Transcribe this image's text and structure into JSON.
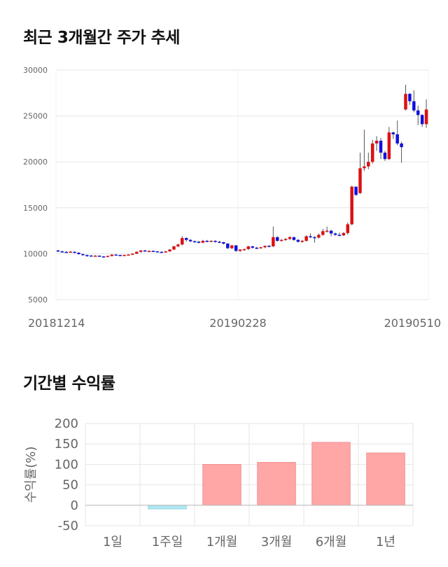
{
  "sections": {
    "price_title": "최근 3개월간 주가 추세",
    "return_title": "기간별 수익률"
  },
  "colors": {
    "up": "#dd1111",
    "down": "#1111dd",
    "grid": "#e6e6e6",
    "positive_bar": "#ffa6a6",
    "negative_bar": "#aee8f2"
  },
  "chart_data": [
    {
      "type": "candlestick",
      "title": "최근 3개월간 주가 추세",
      "xlabel": "",
      "ylabel": "",
      "ylim": [
        5000,
        30000
      ],
      "y_ticks": [
        "30000",
        "25000",
        "20000",
        "15000",
        "10000",
        "5000"
      ],
      "x_tick_labels": [
        "20181214",
        "20190228",
        "20190510"
      ],
      "candles": [
        [
          10350,
          10250,
          10420,
          10180
        ],
        [
          10250,
          10200,
          10330,
          10120
        ],
        [
          10200,
          10150,
          10270,
          10080
        ],
        [
          10150,
          10220,
          10300,
          10100
        ],
        [
          10200,
          10100,
          10250,
          10050
        ],
        [
          10100,
          9950,
          10180,
          9900
        ],
        [
          9950,
          9850,
          10020,
          9800
        ],
        [
          9850,
          9800,
          9900,
          9650
        ],
        [
          9800,
          9750,
          9850,
          9700
        ],
        [
          9750,
          9780,
          9850,
          9700
        ],
        [
          9780,
          9700,
          9820,
          9650
        ],
        [
          9700,
          9680,
          9750,
          9600
        ],
        [
          9680,
          9750,
          9800,
          9620
        ],
        [
          9750,
          9900,
          9950,
          9700
        ],
        [
          9900,
          9850,
          9950,
          9800
        ],
        [
          9850,
          9800,
          9900,
          9750
        ],
        [
          9800,
          9850,
          9900,
          9760
        ],
        [
          9850,
          9900,
          9950,
          9800
        ],
        [
          9900,
          10000,
          10050,
          9850
        ],
        [
          10000,
          10200,
          10250,
          9950
        ],
        [
          10200,
          10350,
          10400,
          10100
        ],
        [
          10350,
          10250,
          10400,
          10200
        ],
        [
          10250,
          10300,
          10350,
          10150
        ],
        [
          10300,
          10250,
          10350,
          10200
        ],
        [
          10250,
          10200,
          10300,
          10150
        ],
        [
          10200,
          10150,
          10250,
          10100
        ],
        [
          10150,
          10250,
          10300,
          10100
        ],
        [
          10250,
          10450,
          10500,
          10200
        ],
        [
          10450,
          10800,
          10850,
          10400
        ],
        [
          10800,
          11000,
          11100,
          10700
        ],
        [
          11000,
          11700,
          11900,
          10900
        ],
        [
          11700,
          11500,
          11800,
          11300
        ],
        [
          11500,
          11350,
          11600,
          11250
        ],
        [
          11350,
          11300,
          11450,
          11200
        ],
        [
          11300,
          11200,
          11400,
          11100
        ],
        [
          11200,
          11400,
          11500,
          11150
        ],
        [
          11400,
          11350,
          11500,
          11250
        ],
        [
          11350,
          11400,
          11450,
          11250
        ],
        [
          11400,
          11300,
          11450,
          11200
        ],
        [
          11300,
          11250,
          11400,
          11150
        ],
        [
          11250,
          11100,
          11300,
          11000
        ],
        [
          11100,
          10600,
          11150,
          10500
        ],
        [
          10600,
          10900,
          10950,
          10500
        ],
        [
          10900,
          10300,
          10950,
          10200
        ],
        [
          10300,
          10450,
          10500,
          10200
        ],
        [
          10450,
          10500,
          10550,
          10300
        ],
        [
          10500,
          10800,
          10850,
          10400
        ],
        [
          10800,
          10650,
          10850,
          10550
        ],
        [
          10650,
          10600,
          10750,
          10500
        ],
        [
          10600,
          10700,
          10750,
          10550
        ],
        [
          10700,
          10850,
          10900,
          10600
        ],
        [
          10850,
          10800,
          10950,
          10700
        ],
        [
          10800,
          11800,
          12950,
          10700
        ],
        [
          11800,
          11400,
          11900,
          11300
        ],
        [
          11400,
          11500,
          11600,
          11300
        ],
        [
          11500,
          11600,
          11700,
          11400
        ],
        [
          11600,
          11800,
          11900,
          11500
        ],
        [
          11800,
          11500,
          11850,
          11400
        ],
        [
          11500,
          11300,
          11600,
          11200
        ],
        [
          11300,
          11400,
          11500,
          11200
        ],
        [
          11400,
          11900,
          12000,
          11300
        ],
        [
          11900,
          11800,
          12200,
          11700
        ],
        [
          11800,
          11750,
          11900,
          11200
        ],
        [
          11750,
          12050,
          12200,
          11650
        ],
        [
          12050,
          12450,
          12700,
          11950
        ],
        [
          12450,
          12500,
          12950,
          12300
        ],
        [
          12500,
          12200,
          12600,
          11900
        ],
        [
          12200,
          12050,
          12300,
          11950
        ],
        [
          12050,
          12000,
          12300,
          11900
        ],
        [
          12000,
          12250,
          12350,
          11900
        ],
        [
          12250,
          13200,
          13400,
          12100
        ],
        [
          13200,
          17300,
          17400,
          13100
        ],
        [
          17300,
          16400,
          17200,
          16300
        ],
        [
          16600,
          19300,
          21000,
          16500
        ],
        [
          19300,
          19500,
          23500,
          19000
        ],
        [
          19500,
          20000,
          21000,
          19200
        ],
        [
          20000,
          22000,
          22400,
          19800
        ],
        [
          22000,
          22300,
          22800,
          21200
        ],
        [
          22300,
          21000,
          22600,
          20300
        ],
        [
          21000,
          20300,
          21200,
          20100
        ],
        [
          20300,
          23200,
          23800,
          20200
        ],
        [
          23200,
          23000,
          23300,
          22500
        ],
        [
          23000,
          22000,
          24500,
          21800
        ],
        [
          22000,
          21600,
          22200,
          19900
        ],
        [
          25700,
          27400,
          28400,
          25600
        ],
        [
          27400,
          26600,
          27500,
          26200
        ],
        [
          26600,
          25600,
          27800,
          25400
        ],
        [
          25600,
          25100,
          26100,
          24000
        ],
        [
          25100,
          24100,
          25200,
          23800
        ],
        [
          24100,
          25700,
          26800,
          23700
        ]
      ]
    },
    {
      "type": "bar",
      "title": "기간별 수익률",
      "xlabel": "",
      "ylabel": "수익률(%)",
      "ylim": [
        -50,
        200
      ],
      "y_ticks": [
        "200",
        "150",
        "100",
        "50",
        "0",
        "-50"
      ],
      "categories": [
        "1일",
        "1주일",
        "1개월",
        "3개월",
        "6개월",
        "1년"
      ],
      "values": [
        0,
        -9,
        100,
        105,
        154,
        128
      ]
    }
  ]
}
